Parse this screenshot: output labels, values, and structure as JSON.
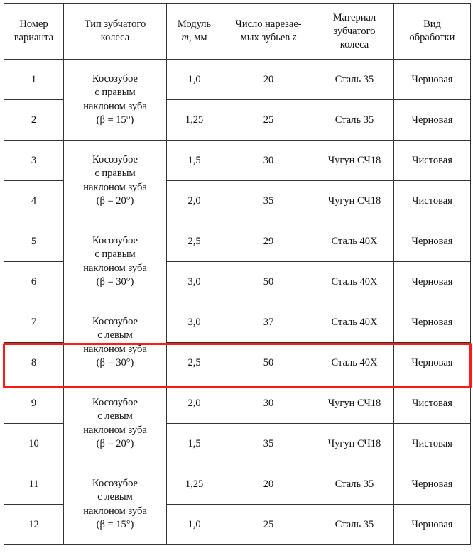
{
  "headers": [
    {
      "line1": "Номер",
      "line2": "варианта"
    },
    {
      "line1": "Тип зубчатого",
      "line2": "колеса"
    },
    {
      "line1": "Модуль",
      "var": "m",
      "line2": ", мм"
    },
    {
      "line1": "Число нарезае-",
      "line2": "мых зубьев ",
      "var": "z"
    },
    {
      "line1": "Материал",
      "line2": "зубчатого",
      "line3": "колеса"
    },
    {
      "line1": "Вид",
      "line2": "обработки"
    }
  ],
  "rows": [
    {
      "n": "1",
      "m": "1,0",
      "z": "20",
      "material": "Сталь 35",
      "processing": "Черновая"
    },
    {
      "n": "2",
      "m": "1,25",
      "z": "25",
      "material": "Сталь 35",
      "processing": "Черновая"
    },
    {
      "n": "3",
      "m": "1,5",
      "z": "30",
      "material": "Чугун СЧ18",
      "processing": "Чистовая"
    },
    {
      "n": "4",
      "m": "2,0",
      "z": "35",
      "material": "Чугун СЧ18",
      "processing": "Чистовая"
    },
    {
      "n": "5",
      "m": "2,5",
      "z": "29",
      "material": "Сталь 40Х",
      "processing": "Черновая"
    },
    {
      "n": "6",
      "m": "3,0",
      "z": "50",
      "material": "Сталь 40Х",
      "processing": "Черновая"
    },
    {
      "n": "7",
      "m": "3,0",
      "z": "37",
      "material": "Сталь 40Х",
      "processing": "Черновая"
    },
    {
      "n": "8",
      "m": "2,5",
      "z": "50",
      "material": "Сталь 40Х",
      "processing": "Черновая"
    },
    {
      "n": "9",
      "m": "2,0",
      "z": "30",
      "material": "Чугун СЧ18",
      "processing": "Чистовая"
    },
    {
      "n": "10",
      "m": "1,5",
      "z": "35",
      "material": "Чугун СЧ18",
      "processing": "Чистовая"
    },
    {
      "n": "11",
      "m": "1,25",
      "z": "20",
      "material": "Сталь 35",
      "processing": "Черновая"
    },
    {
      "n": "12",
      "m": "1,0",
      "z": "25",
      "material": "Сталь 35",
      "processing": "Черновая"
    }
  ],
  "types": [
    {
      "l1": "Косозубое",
      "l2": "с правым",
      "l3": "наклоном зуба",
      "l4": "(β = 15°)"
    },
    {
      "l1": "Косозубое",
      "l2": "с правым",
      "l3": "наклоном зуба",
      "l4": "(β = 20°)"
    },
    {
      "l1": "Косозубое",
      "l2": "с правым",
      "l3": "наклоном зуба",
      "l4": "(β = 30°)"
    },
    {
      "l1": "Косозубое",
      "l2": "с левым",
      "l3": "наклоном зуба",
      "l4": "(β = 30°)"
    },
    {
      "l1": "Косозубое",
      "l2": "с левым",
      "l3": "наклоном зуба",
      "l4": "(β = 20°)"
    },
    {
      "l1": "Косозубое",
      "l2": "с левым",
      "l3": "наклоном зуба",
      "l4": "(β = 15°)"
    }
  ],
  "highlight": {
    "row": "8",
    "color": "#ff1a1a"
  }
}
